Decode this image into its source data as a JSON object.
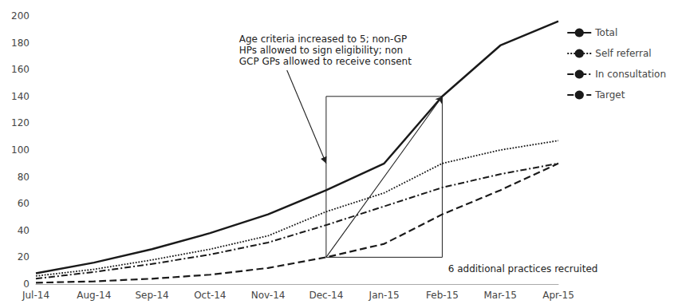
{
  "chart_data": {
    "type": "line",
    "categories": [
      "Jul-14",
      "Aug-14",
      "Sep-14",
      "Oct-14",
      "Nov-14",
      "Dec-14",
      "Jan-15",
      "Feb-15",
      "Mar-15",
      "Apr-15"
    ],
    "series": [
      {
        "name": "Total",
        "color": "#1a1a1a",
        "line_style": "solid",
        "values": [
          8,
          16,
          26,
          38,
          52,
          70,
          90,
          140,
          178,
          196
        ]
      },
      {
        "name": "Self referral",
        "color": "#1a1a1a",
        "line_style": "dotted",
        "values": [
          6,
          11,
          18,
          26,
          36,
          54,
          68,
          90,
          100,
          107
        ]
      },
      {
        "name": "In consultation",
        "color": "#1a1a1a",
        "line_style": "dashdot",
        "values": [
          4,
          9,
          15,
          22,
          31,
          44,
          58,
          72,
          82,
          90
        ]
      },
      {
        "name": "Target",
        "color": "#1a1a1a",
        "line_style": "dashed",
        "values": [
          1,
          2,
          4,
          7,
          12,
          20,
          30,
          52,
          70,
          90
        ]
      }
    ],
    "ylim": [
      0,
      200
    ],
    "yticks": [
      0,
      20,
      40,
      60,
      80,
      100,
      120,
      140,
      160,
      180,
      200
    ],
    "grid": false,
    "legend": "right",
    "annotations": [
      {
        "text": "Age criteria increased to 5; non-GP\nHPs allowed to sign eligibility; non\nGCP GPs allowed to receive consent",
        "x": "Dec-14",
        "y": 90
      },
      {
        "text": "6 additional practices recruited",
        "x": "Feb-15",
        "y": 20
      }
    ],
    "region": {
      "x": [
        "Dec-14",
        "Feb-15"
      ],
      "y": [
        20,
        140
      ]
    }
  }
}
